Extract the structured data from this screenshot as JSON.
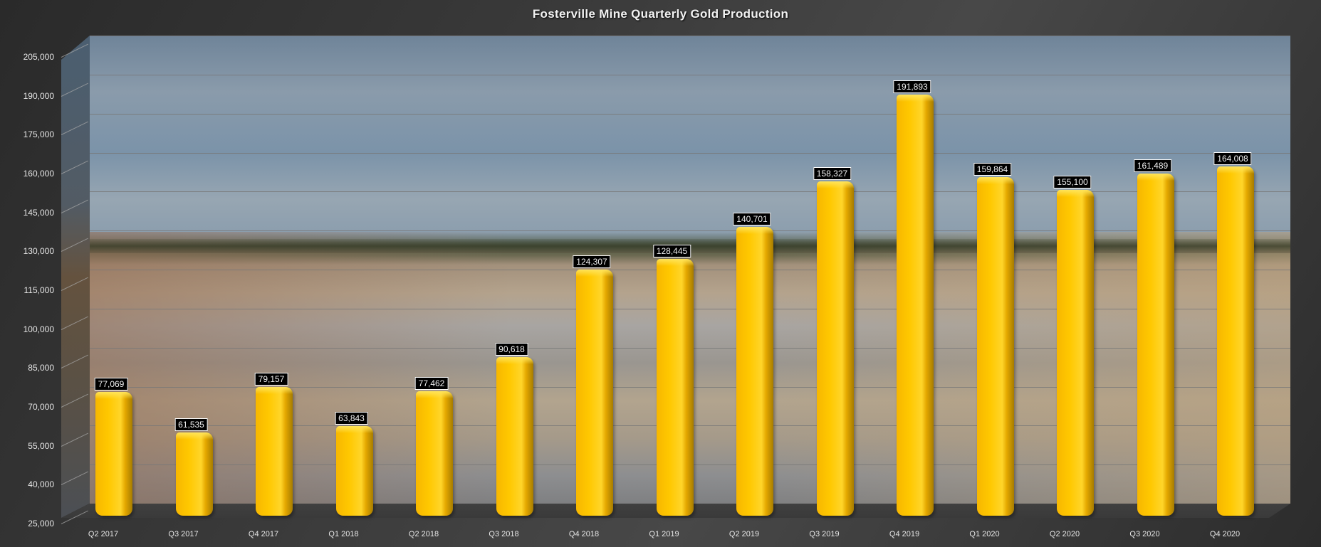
{
  "chart_data": {
    "type": "bar",
    "title": "Fosterville Mine Quarterly Gold Production",
    "xlabel": "",
    "ylabel": "",
    "ylim": [
      25000,
      205000
    ],
    "yticks": [
      "25,000",
      "40,000",
      "55,000",
      "70,000",
      "85,000",
      "100,000",
      "115,000",
      "130,000",
      "145,000",
      "160,000",
      "175,000",
      "190,000",
      "205,000"
    ],
    "grid": true,
    "legend": null,
    "style": "3D column with photo background",
    "bar_color": "#FFC000",
    "categories": [
      "Q2 2017",
      "Q3 2017",
      "Q4 2017",
      "Q1 2018",
      "Q2 2018",
      "Q3 2018",
      "Q4 2018",
      "Q1 2019",
      "Q2 2019",
      "Q3 2019",
      "Q4 2019",
      "Q1 2020",
      "Q2 2020",
      "Q3 2020",
      "Q4 2020"
    ],
    "values": [
      77069,
      61535,
      79157,
      63843,
      77462,
      90618,
      124307,
      128445,
      140701,
      158327,
      191893,
      159864,
      155100,
      161489,
      164008
    ],
    "data_labels": [
      "77,069",
      "61,535",
      "79,157",
      "63,843",
      "77,462",
      "90,618",
      "124,307",
      "128,445",
      "140,701",
      "158,327",
      "191,893",
      "159,864",
      "155,100",
      "161,489",
      "164,008"
    ]
  }
}
